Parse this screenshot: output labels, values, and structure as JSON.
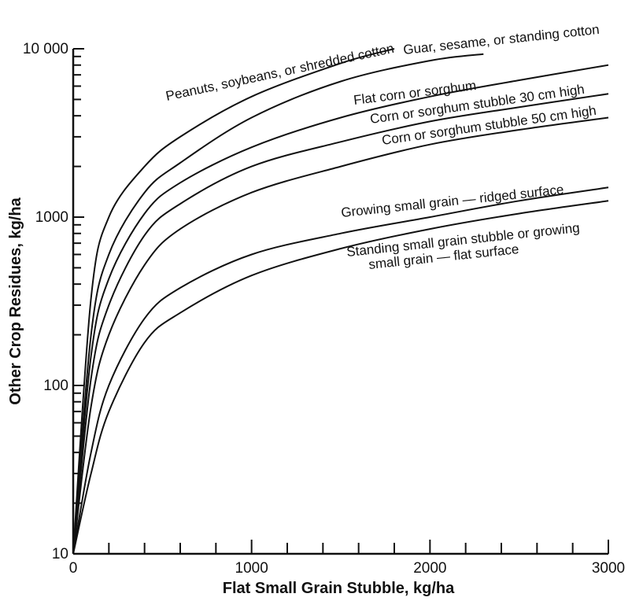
{
  "chart_data": {
    "type": "line",
    "xlabel": "Flat Small Grain Stubble, kg/ha",
    "ylabel": "Other Crop Residues, kg/ha",
    "xlim": [
      0,
      3000
    ],
    "ylim": [
      10,
      10000
    ],
    "yscale": "log",
    "grid": false,
    "legend": "none",
    "x_ticks": [
      0,
      1000,
      2000,
      3000
    ],
    "x_tick_labels": [
      "0",
      "1000",
      "2000",
      "3000"
    ],
    "y_ticks": [
      10,
      100,
      1000,
      10000
    ],
    "y_tick_labels": [
      "10",
      "100",
      "1000",
      "10 000"
    ],
    "series": [
      {
        "name": "Peanuts, soybeans, or shredded cotton",
        "x": [
          0,
          100,
          200,
          400,
          600,
          1000,
          1500,
          1800
        ],
        "y": [
          10,
          330,
          1000,
          2000,
          3000,
          5200,
          8200,
          10000
        ]
      },
      {
        "name": "Guar, sesame, or standing cotton",
        "x": [
          0,
          100,
          200,
          400,
          600,
          1000,
          1500,
          2000,
          2300
        ],
        "y": [
          10,
          200,
          600,
          1400,
          2100,
          3900,
          6400,
          8500,
          9300
        ]
      },
      {
        "name": "Flat corn or sorghum",
        "x": [
          0,
          100,
          200,
          400,
          600,
          1000,
          1500,
          2000,
          2500,
          3000
        ],
        "y": [
          10,
          150,
          430,
          1050,
          1600,
          2600,
          3900,
          5200,
          6500,
          8000
        ]
      },
      {
        "name": "Corn or sorghum stubble 30 cm high",
        "x": [
          0,
          100,
          200,
          400,
          600,
          1000,
          1500,
          2000,
          2500,
          3000
        ],
        "y": [
          10,
          110,
          300,
          780,
          1200,
          2000,
          2800,
          3700,
          4500,
          5400
        ]
      },
      {
        "name": "Corn or sorghum stubble 50 cm high",
        "x": [
          0,
          100,
          200,
          400,
          600,
          1000,
          1500,
          2000,
          2500,
          3000
        ],
        "y": [
          10,
          75,
          200,
          520,
          850,
          1400,
          2000,
          2700,
          3300,
          3900
        ]
      },
      {
        "name": "Growing small grain — ridged surface",
        "x": [
          0,
          100,
          200,
          400,
          600,
          1000,
          1500,
          2000,
          2500,
          3000
        ],
        "y": [
          10,
          40,
          100,
          250,
          380,
          600,
          800,
          1000,
          1250,
          1500
        ]
      },
      {
        "name": "Standing small grain stubble or growing small grain — flat surface",
        "x": [
          0,
          100,
          200,
          400,
          600,
          1000,
          1500,
          2000,
          2500,
          3000
        ],
        "y": [
          10,
          30,
          70,
          180,
          270,
          450,
          650,
          850,
          1050,
          1250
        ]
      }
    ],
    "curve_labels": [
      {
        "text": "Peanuts, soybeans, or shredded cotton"
      },
      {
        "text": "Guar, sesame, or standing cotton"
      },
      {
        "text": "Flat corn or sorghum"
      },
      {
        "text": "Corn or sorghum stubble 30 cm high"
      },
      {
        "text": "Corn or sorghum stubble 50 cm high"
      },
      {
        "text": "Growing small grain — ridged surface"
      },
      {
        "text": "Standing small grain stubble or growing"
      },
      {
        "text": "small grain — flat surface"
      }
    ]
  }
}
